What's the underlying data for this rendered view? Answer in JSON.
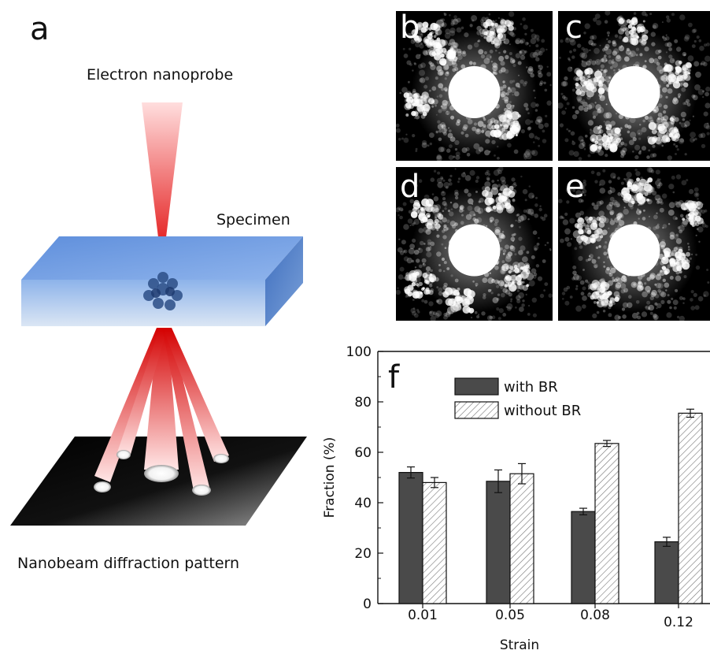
{
  "panel_a": {
    "letter": "a",
    "label_probe": "Electron nanoprobe",
    "label_specimen": "Specimen",
    "label_pattern": "Nanobeam diffraction pattern"
  },
  "micrographs": [
    {
      "letter": "b"
    },
    {
      "letter": "c"
    },
    {
      "letter": "d"
    },
    {
      "letter": "e"
    }
  ],
  "chart_data": {
    "type": "bar",
    "panel_letter": "f",
    "categories": [
      "0.01",
      "0.05",
      "0.08",
      "0.12"
    ],
    "series": [
      {
        "name": "with BR",
        "values": [
          52,
          48.5,
          36.5,
          24.5
        ],
        "errors": [
          2.2,
          4.5,
          1.3,
          1.8
        ],
        "fill": "#4a4a4a"
      },
      {
        "name": "without BR",
        "values": [
          48,
          51.5,
          63.5,
          75.5
        ],
        "errors": [
          2.0,
          4.0,
          1.2,
          1.6
        ],
        "fill": "hatch"
      }
    ],
    "xlabel": "Strain",
    "ylabel": "Fraction (%)",
    "ylim": [
      0,
      100
    ],
    "yticks": [
      0,
      20,
      40,
      60,
      80,
      100
    ],
    "legend": "top-left",
    "grid": false
  }
}
